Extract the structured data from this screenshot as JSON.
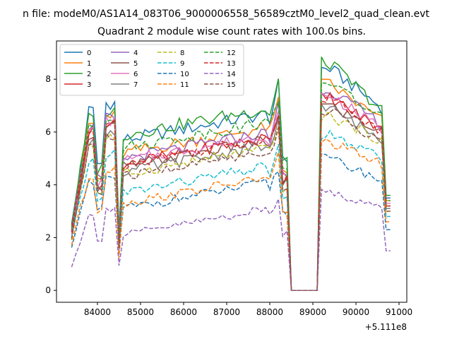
{
  "figure": {
    "suptitle": "n file: modeM0/AS1A14_083T06_9000006558_56589cztM0_level2_quad_clean.evt"
  },
  "chart_data": {
    "type": "line",
    "title": "Quadrant 2 module wise count rates with 100.0s bins.",
    "xlabel": "",
    "ylabel": "",
    "x_offset_label": "+5.111e8",
    "x_offset": 511100000,
    "xlim": [
      83050,
      91180
    ],
    "ylim": [
      -0.45,
      9.45
    ],
    "x_ticks": [
      84000,
      85000,
      86000,
      87000,
      88000,
      89000,
      90000,
      91000
    ],
    "x_tick_labels": [
      "84000",
      "85000",
      "86000",
      "87000",
      "88000",
      "89000",
      "90000",
      "91000"
    ],
    "y_ticks": [
      0,
      2,
      4,
      6,
      8
    ],
    "y_tick_labels": [
      "0",
      "2",
      "4",
      "6",
      "8"
    ],
    "grid": false,
    "legend_placement": "top-left",
    "legend_columns": 4,
    "gap": [
      88500,
      89100
    ],
    "series": [
      {
        "name": "0",
        "color": "#1f77b4",
        "dash": "solid",
        "base": 6.5,
        "ramp": [
          2.4,
          6.8
        ],
        "dip": 4.8,
        "peak": 8.4,
        "tail": 6.8,
        "end": 3.5,
        "amp": 0.25
      },
      {
        "name": "1",
        "color": "#ff7f0e",
        "dash": "solid",
        "base": 6.0,
        "ramp": [
          2.2,
          6.3
        ],
        "dip": 4.2,
        "peak": 7.8,
        "tail": 6.3,
        "end": 3.4,
        "amp": 0.25
      },
      {
        "name": "2",
        "color": "#2ca02c",
        "dash": "solid",
        "base": 6.7,
        "ramp": [
          2.5,
          6.5
        ],
        "dip": 4.6,
        "peak": 8.6,
        "tail": 6.7,
        "end": 3.6,
        "amp": 0.25
      },
      {
        "name": "3",
        "color": "#d62728",
        "dash": "solid",
        "base": 5.6,
        "ramp": [
          2.3,
          6.0
        ],
        "dip": 4.0,
        "peak": 7.3,
        "tail": 6.0,
        "end": 3.3,
        "amp": 0.22
      },
      {
        "name": "4",
        "color": "#9467bd",
        "dash": "solid",
        "base": 5.8,
        "ramp": [
          2.4,
          6.2
        ],
        "dip": 4.2,
        "peak": 7.6,
        "tail": 6.2,
        "end": 3.3,
        "amp": 0.22
      },
      {
        "name": "5",
        "color": "#8c564b",
        "dash": "solid",
        "base": 5.5,
        "ramp": [
          2.2,
          5.9
        ],
        "dip": 3.9,
        "peak": 7.0,
        "tail": 5.9,
        "end": 3.2,
        "amp": 0.22
      },
      {
        "name": "6",
        "color": "#e377c2",
        "dash": "solid",
        "base": 5.7,
        "ramp": [
          2.3,
          6.1
        ],
        "dip": 4.1,
        "peak": 7.4,
        "tail": 6.0,
        "end": 3.3,
        "amp": 0.22
      },
      {
        "name": "7",
        "color": "#7f7f7f",
        "dash": "solid",
        "base": 5.3,
        "ramp": [
          2.1,
          5.7
        ],
        "dip": 3.8,
        "peak": 6.9,
        "tail": 5.6,
        "end": 3.1,
        "amp": 0.22
      },
      {
        "name": "8",
        "color": "#bcbd22",
        "dash": "dashed",
        "base": 5.2,
        "ramp": [
          2.0,
          5.5
        ],
        "dip": 3.7,
        "peak": 6.6,
        "tail": 5.6,
        "end": 3.0,
        "amp": 0.2
      },
      {
        "name": "9",
        "color": "#17becf",
        "dash": "dashed",
        "base": 4.5,
        "ramp": [
          1.9,
          4.9
        ],
        "dip": 3.4,
        "peak": 5.9,
        "tail": 4.9,
        "end": 2.8,
        "amp": 0.2
      },
      {
        "name": "10",
        "color": "#1f77b4",
        "dash": "dashed",
        "base": 3.9,
        "ramp": [
          1.8,
          4.0
        ],
        "dip": 3.0,
        "peak": 5.0,
        "tail": 4.1,
        "end": 2.3,
        "amp": 0.18
      },
      {
        "name": "11",
        "color": "#ff7f0e",
        "dash": "dashed",
        "base": 4.1,
        "ramp": [
          1.8,
          4.3
        ],
        "dip": 3.1,
        "peak": 5.6,
        "tail": 4.7,
        "end": 2.6,
        "amp": 0.18
      },
      {
        "name": "12",
        "color": "#2ca02c",
        "dash": "dashed",
        "base": 6.2,
        "ramp": [
          2.3,
          6.3
        ],
        "dip": 4.3,
        "peak": 7.9,
        "tail": 6.4,
        "end": 3.4,
        "amp": 0.22
      },
      {
        "name": "13",
        "color": "#d62728",
        "dash": "dashed",
        "base": 5.6,
        "ramp": [
          2.2,
          6.0
        ],
        "dip": 4.0,
        "peak": 7.3,
        "tail": 5.9,
        "end": 3.2,
        "amp": 0.22
      },
      {
        "name": "14",
        "color": "#9467bd",
        "dash": "dashed",
        "base": 2.9,
        "ramp": [
          1.0,
          2.8
        ],
        "dip": 2.0,
        "peak": 3.7,
        "tail": 3.1,
        "end": 1.5,
        "amp": 0.15
      },
      {
        "name": "15",
        "color": "#8c564b",
        "dash": "dashed",
        "base": 5.1,
        "ramp": [
          2.0,
          5.5
        ],
        "dip": 3.7,
        "peak": 6.8,
        "tail": 5.5,
        "end": 3.0,
        "amp": 0.2
      }
    ]
  }
}
